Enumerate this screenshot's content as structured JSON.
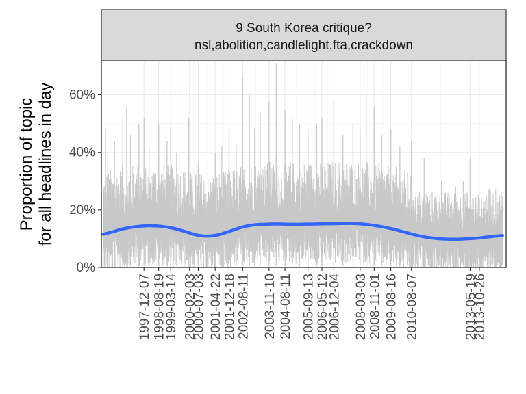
{
  "chart_data": {
    "type": "line",
    "strip": {
      "line1": "9 South Korea critique?",
      "line2": "nsl,abolition,candlelight,fta,crackdown"
    },
    "ylabel_line1": "Proportion of topic",
    "ylabel_line2": "for all headlines in day",
    "xlabel": "",
    "ylim": [
      0,
      72
    ],
    "y_ticks": [
      {
        "value": 0,
        "label": "0%"
      },
      {
        "value": 20,
        "label": "20%"
      },
      {
        "value": 40,
        "label": "40%"
      },
      {
        "value": 60,
        "label": "60%"
      }
    ],
    "x_range": [
      "1995-12-01",
      "2015-02-01"
    ],
    "x_ticks": [
      "1997-12-07",
      "1998-08-19",
      "1999-03-14",
      "2000-02-03",
      "2000-07-03",
      "2001-04-22",
      "2001-12-18",
      "2002-08-11",
      "2003-11-10",
      "2004-08-11",
      "2005-09-13",
      "2006-05-12",
      "2006-12-04",
      "2008-03-03",
      "2008-11-01",
      "2009-08-16",
      "2010-08-07",
      "2013-05-19",
      "2013-10-26"
    ],
    "daily_series_color": "#c8c8c8",
    "smooth_series_color": "#3366ff",
    "daily_spikes": [
      {
        "x": "1996-02-10",
        "y": 48
      },
      {
        "x": "1996-03-20",
        "y": 40
      },
      {
        "x": "1996-07-15",
        "y": 44
      },
      {
        "x": "1996-12-05",
        "y": 52
      },
      {
        "x": "1997-02-10",
        "y": 56
      },
      {
        "x": "1997-04-20",
        "y": 46
      },
      {
        "x": "1997-09-10",
        "y": 50
      },
      {
        "x": "1997-12-07",
        "y": 52
      },
      {
        "x": "1998-03-05",
        "y": 42
      },
      {
        "x": "1998-08-19",
        "y": 50
      },
      {
        "x": "1999-01-10",
        "y": 44
      },
      {
        "x": "1999-03-14",
        "y": 48
      },
      {
        "x": "1999-06-25",
        "y": 40
      },
      {
        "x": "2000-01-20",
        "y": 52
      },
      {
        "x": "2000-07-03",
        "y": 36
      },
      {
        "x": "2001-04-22",
        "y": 40
      },
      {
        "x": "2001-08-15",
        "y": 42
      },
      {
        "x": "2001-12-18",
        "y": 48
      },
      {
        "x": "2002-04-20",
        "y": 42
      },
      {
        "x": "2002-08-11",
        "y": 66
      },
      {
        "x": "2002-12-05",
        "y": 60
      },
      {
        "x": "2003-03-05",
        "y": 48
      },
      {
        "x": "2003-06-10",
        "y": 54
      },
      {
        "x": "2003-11-10",
        "y": 58
      },
      {
        "x": "2004-03-12",
        "y": 71
      },
      {
        "x": "2004-08-11",
        "y": 55
      },
      {
        "x": "2004-12-15",
        "y": 52
      },
      {
        "x": "2005-04-20",
        "y": 50
      },
      {
        "x": "2005-09-13",
        "y": 48
      },
      {
        "x": "2006-02-12",
        "y": 50
      },
      {
        "x": "2006-05-12",
        "y": 52
      },
      {
        "x": "2006-12-04",
        "y": 58
      },
      {
        "x": "2007-05-10",
        "y": 46
      },
      {
        "x": "2007-11-01",
        "y": 50
      },
      {
        "x": "2008-03-03",
        "y": 48
      },
      {
        "x": "2008-06-15",
        "y": 60
      },
      {
        "x": "2008-11-01",
        "y": 56
      },
      {
        "x": "2009-03-10",
        "y": 46
      },
      {
        "x": "2009-08-16",
        "y": 48
      },
      {
        "x": "2010-01-20",
        "y": 42
      },
      {
        "x": "2010-08-07",
        "y": 44
      },
      {
        "x": "2011-03-15",
        "y": 38
      },
      {
        "x": "2012-01-10",
        "y": 30
      },
      {
        "x": "2012-09-12",
        "y": 28
      },
      {
        "x": "2013-01-20",
        "y": 30
      },
      {
        "x": "2013-05-19",
        "y": 38
      },
      {
        "x": "2013-10-26",
        "y": 24
      },
      {
        "x": "2014-05-05",
        "y": 27
      },
      {
        "x": "2014-10-05",
        "y": 24
      }
    ],
    "smooth": [
      {
        "x": "1996-01-01",
        "y": 11.5
      },
      {
        "x": "1996-06-01",
        "y": 12.3
      },
      {
        "x": "1997-01-01",
        "y": 13.5
      },
      {
        "x": "1997-08-01",
        "y": 14.2
      },
      {
        "x": "1998-03-01",
        "y": 14.5
      },
      {
        "x": "1998-10-01",
        "y": 14.3
      },
      {
        "x": "1999-05-01",
        "y": 13.6
      },
      {
        "x": "1999-12-01",
        "y": 12.4
      },
      {
        "x": "2000-06-01",
        "y": 11.3
      },
      {
        "x": "2000-12-01",
        "y": 10.9
      },
      {
        "x": "2001-06-01",
        "y": 11.3
      },
      {
        "x": "2002-01-01",
        "y": 12.6
      },
      {
        "x": "2002-08-01",
        "y": 14.0
      },
      {
        "x": "2003-03-01",
        "y": 14.8
      },
      {
        "x": "2004-01-01",
        "y": 15.1
      },
      {
        "x": "2005-01-01",
        "y": 15.0
      },
      {
        "x": "2006-01-01",
        "y": 15.1
      },
      {
        "x": "2007-01-01",
        "y": 15.2
      },
      {
        "x": "2007-10-01",
        "y": 15.3
      },
      {
        "x": "2008-06-01",
        "y": 15.0
      },
      {
        "x": "2009-02-01",
        "y": 14.3
      },
      {
        "x": "2009-10-01",
        "y": 13.3
      },
      {
        "x": "2010-06-01",
        "y": 12.0
      },
      {
        "x": "2011-02-01",
        "y": 10.8
      },
      {
        "x": "2011-10-01",
        "y": 10.1
      },
      {
        "x": "2012-06-01",
        "y": 9.8
      },
      {
        "x": "2013-02-01",
        "y": 9.9
      },
      {
        "x": "2013-10-01",
        "y": 10.2
      },
      {
        "x": "2014-05-01",
        "y": 10.7
      },
      {
        "x": "2014-12-01",
        "y": 11.1
      }
    ]
  }
}
